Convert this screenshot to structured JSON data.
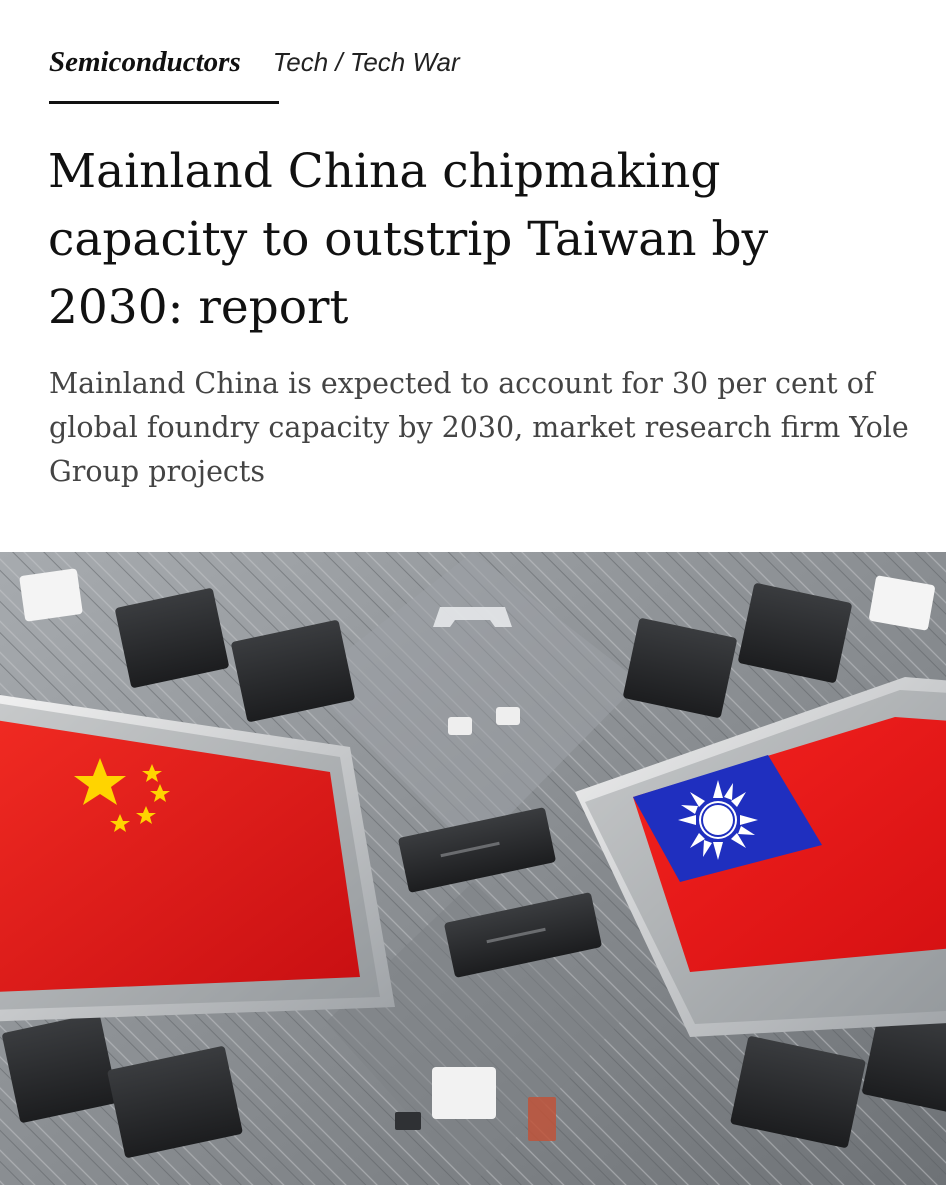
{
  "header": {
    "section": "Semiconductors",
    "breadcrumb": "Tech / Tech War"
  },
  "article": {
    "headline": "Mainland China chipmaking capacity to outstrip Taiwan by 2030: report",
    "summary": "Mainland China is expected to account for 30 per cent of global foundry capacity by 2030, market research firm Yole Group projects"
  },
  "hero_image": {
    "depicts": [
      "china-flag-chip",
      "taiwan-flag-chip",
      "circuit-board"
    ],
    "colors": {
      "board": "#8e9296",
      "red": "#e11a1a",
      "blue": "#1f2fbf",
      "star": "#ffd400"
    }
  }
}
